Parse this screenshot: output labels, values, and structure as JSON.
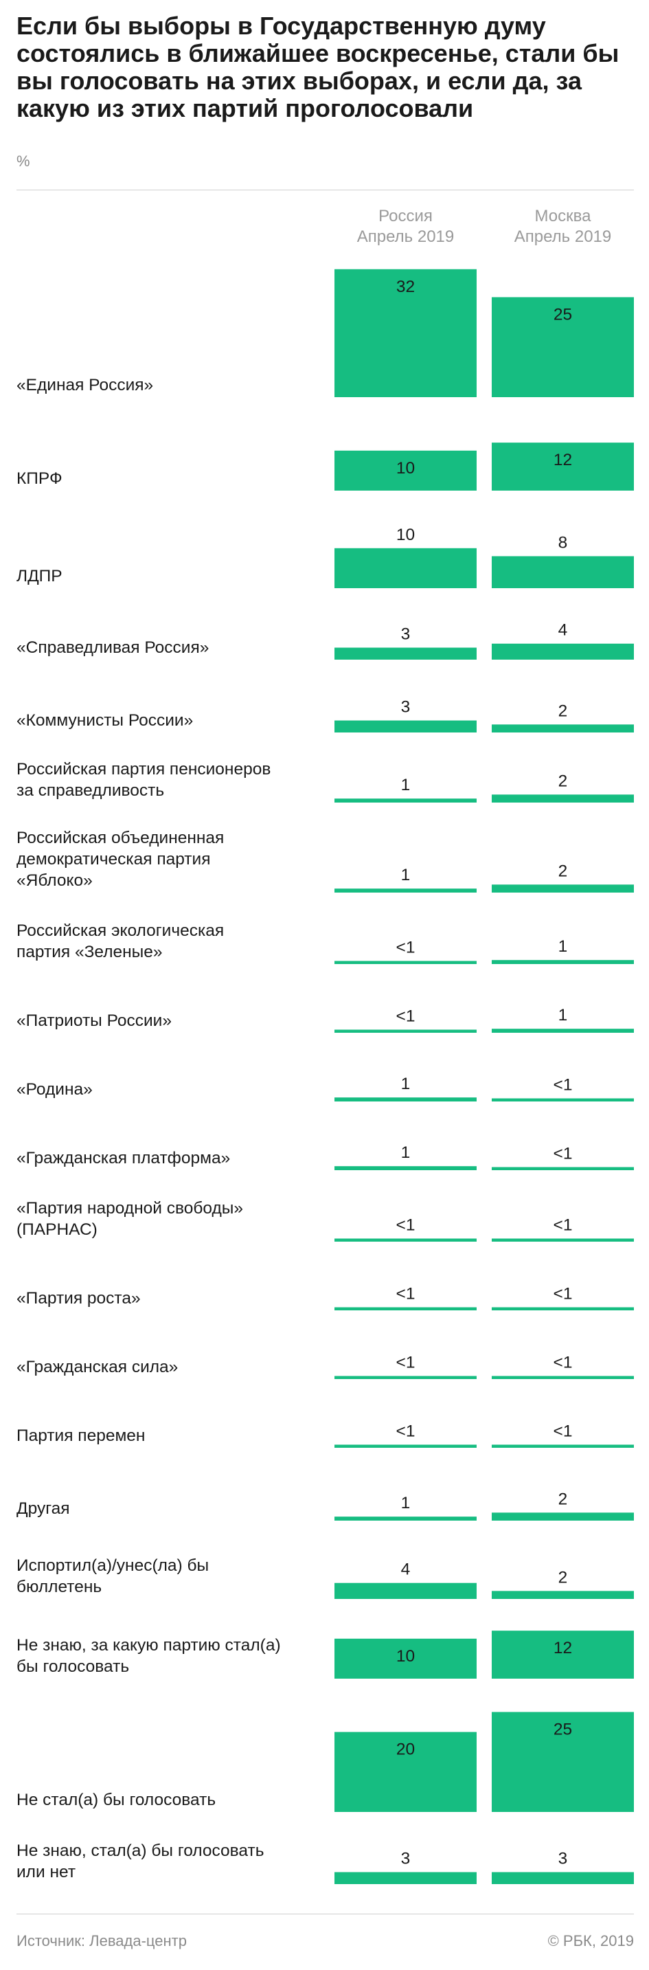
{
  "header": {
    "title": "Если бы выборы в Государственную думу состоялись в ближайшее воскресенье, стали бы вы голосовать на этих выборах, и если да, за какую из этих партий проголосовали",
    "unit": "%"
  },
  "colors": {
    "bar": "#16bd81",
    "rule": "#cfcfcf",
    "muted": "#8a8a8a"
  },
  "chart_data": {
    "type": "bar",
    "orientation": "vertical",
    "grid": false,
    "series": [
      {
        "name": "Россия Апрель 2019",
        "name_lines": [
          "Россия",
          "Апрель 2019"
        ],
        "values": [
          32,
          10,
          10,
          3,
          3,
          1,
          1,
          0.5,
          0.5,
          1,
          1,
          0.5,
          0.5,
          0.5,
          0.5,
          1,
          4,
          10,
          20,
          3
        ],
        "labels": [
          "32",
          "10",
          "10",
          "3",
          "3",
          "1",
          "1",
          "<1",
          "<1",
          "1",
          "1",
          "<1",
          "<1",
          "<1",
          "<1",
          "1",
          "4",
          "10",
          "20",
          "3"
        ]
      },
      {
        "name": "Москва Апрель 2019",
        "name_lines": [
          "Москва",
          "Апрель 2019"
        ],
        "values": [
          25,
          12,
          8,
          4,
          2,
          2,
          2,
          1,
          1,
          0.5,
          0.5,
          0.5,
          0.5,
          0.5,
          0.5,
          2,
          2,
          12,
          25,
          3
        ],
        "labels": [
          "25",
          "12",
          "8",
          "4",
          "2",
          "2",
          "2",
          "1",
          "1",
          "<1",
          "<1",
          "<1",
          "<1",
          "<1",
          "<1",
          "2",
          "2",
          "12",
          "25",
          "3"
        ]
      }
    ],
    "categories": [
      [
        "«Единая Россия»"
      ],
      [
        "КПРФ"
      ],
      [
        "ЛДПР"
      ],
      [
        "«Справедливая Россия»"
      ],
      [
        "«Коммунисты России»"
      ],
      [
        "Российская партия пенсионеров",
        "за справедливость"
      ],
      [
        "Российская объединенная",
        "демократическая партия",
        "«Яблоко»"
      ],
      [
        "Российская экологическая",
        "партия «Зеленые»"
      ],
      [
        "«Патриоты России»"
      ],
      [
        "«Родина»"
      ],
      [
        "«Гражданская платформа»"
      ],
      [
        "«Партия народной свободы»",
        "(ПАРНАС)"
      ],
      [
        "«Партия роста»"
      ],
      [
        "«Гражданская сила»"
      ],
      [
        "Партия перемен"
      ],
      [
        "Другая"
      ],
      [
        "Испортил(а)/унес(ла) бы",
        "бюллетень"
      ],
      [
        "Не знаю, за какую партию стал(а)",
        "бы голосовать"
      ],
      [
        "Не стал(а) бы голосовать"
      ],
      [
        "Не знаю, стал(а) бы голосовать",
        "или нет"
      ]
    ]
  },
  "footer": {
    "source": "Источник: Левада-центр",
    "copyright": "© РБК, 2019"
  }
}
